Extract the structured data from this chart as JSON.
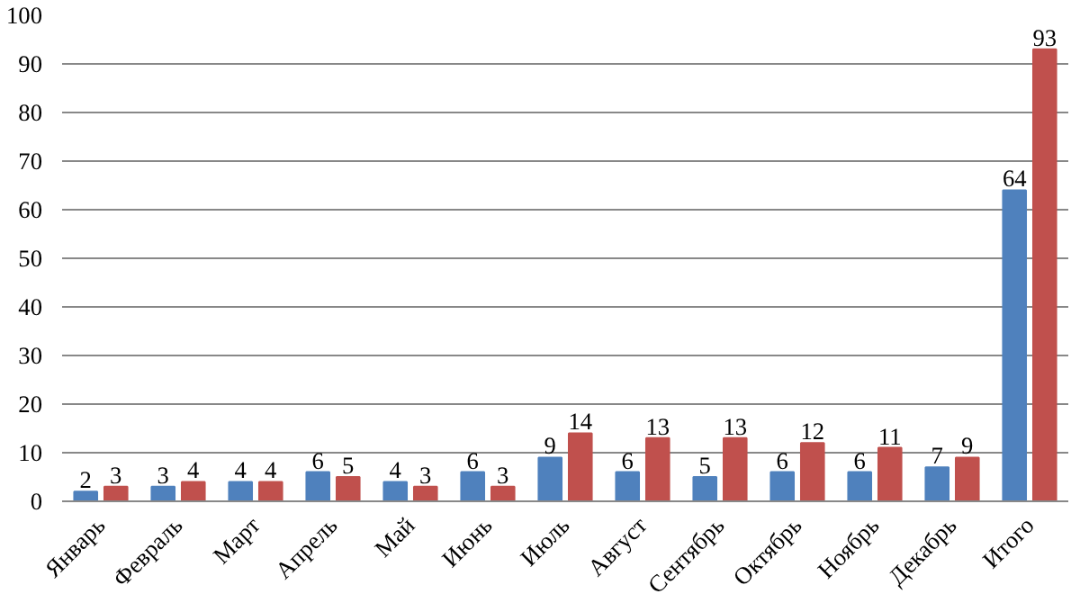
{
  "chart_data": {
    "type": "bar",
    "categories": [
      "Январь",
      "Февраль",
      "Март",
      "Апрель",
      "Май",
      "Июнь",
      "Июль",
      "Август",
      "Сентябрь",
      "Октябрь",
      "Ноябрь",
      "Декабрь",
      "Итого"
    ],
    "series": [
      {
        "color": "#4f81bd",
        "values": [
          2,
          3,
          4,
          6,
          4,
          6,
          9,
          6,
          5,
          6,
          6,
          7,
          64
        ]
      },
      {
        "color": "#c0504d",
        "values": [
          3,
          4,
          4,
          5,
          3,
          3,
          14,
          13,
          13,
          12,
          11,
          9,
          93
        ]
      }
    ],
    "ylim": [
      0,
      100
    ],
    "yticks": [
      0,
      10,
      20,
      30,
      40,
      50,
      60,
      70,
      80,
      90,
      100
    ],
    "grid": "y",
    "data_labels": true
  }
}
